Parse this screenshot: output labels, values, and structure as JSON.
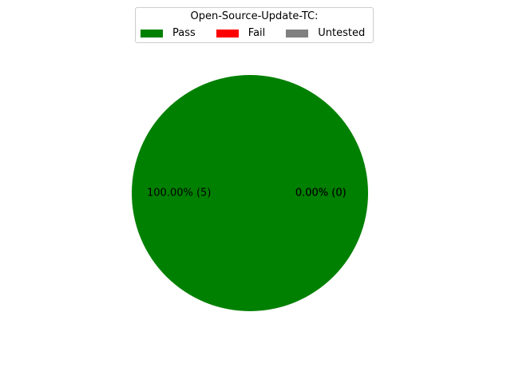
{
  "chart_data": {
    "type": "pie",
    "legend_title": "Open-Source-Update-TC:",
    "legend_position": "top-center",
    "slices": [
      {
        "name": "Pass",
        "value": 5,
        "percent_label": "100.00%",
        "count_label": "(5)",
        "color": "#008000"
      },
      {
        "name": "Fail",
        "value": 0,
        "percent_label": "0.00%",
        "count_label": "(0)",
        "color": "#ff0000"
      },
      {
        "name": "Untested",
        "value": 0,
        "percent_label": "0.00%",
        "count_label": "(0)",
        "color": "#808080"
      }
    ]
  }
}
